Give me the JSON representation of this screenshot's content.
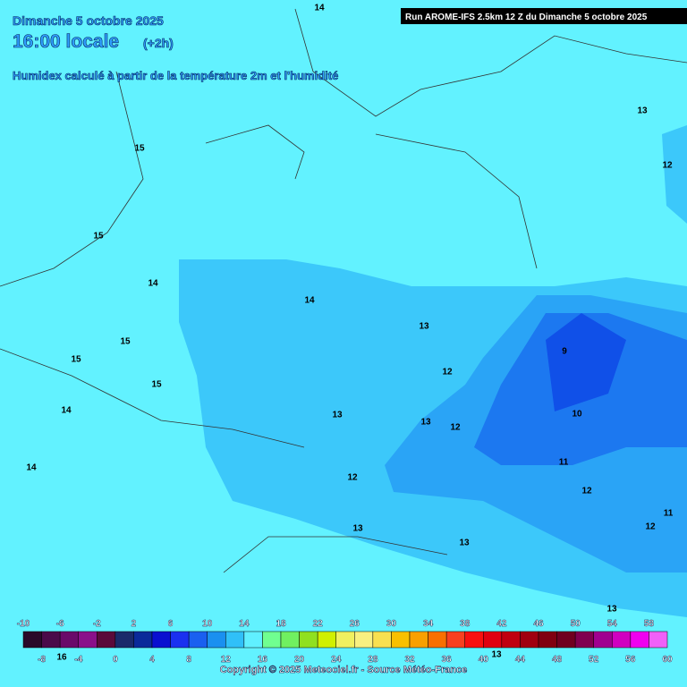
{
  "header": {
    "date": "Dimanche 5 octobre 2025",
    "time": "16:00 locale",
    "offset": "(+2h)",
    "description": "Humidex calculé à partir de la température 2m et l'humidité",
    "run": "Run AROME-IFS 2.5km 12 Z du Dimanche 5 octobre 2025"
  },
  "contour_labels": [
    "14",
    "13",
    "12",
    "15",
    "15",
    "14",
    "14",
    "13",
    "15",
    "15",
    "9",
    "15",
    "12",
    "14",
    "13",
    "13",
    "12",
    "10",
    "14",
    "11",
    "12",
    "12",
    "11",
    "12",
    "13",
    "13",
    "13",
    "13",
    "16"
  ],
  "legend": {
    "top_labels": [
      "-10",
      "-6",
      "-2",
      "2",
      "6",
      "10",
      "14",
      "18",
      "22",
      "26",
      "30",
      "34",
      "38",
      "42",
      "46",
      "50",
      "54",
      "58"
    ],
    "bottom_labels": [
      "-8",
      "-4",
      "0",
      "4",
      "8",
      "12",
      "16",
      "20",
      "24",
      "28",
      "32",
      "36",
      "40",
      "44",
      "48",
      "52",
      "56",
      "60"
    ],
    "colors": [
      "#2a0a2a",
      "#4a0a4a",
      "#6a0a6a",
      "#8a108a",
      "#5a0a3a",
      "#1a2a6a",
      "#0a2a9a",
      "#0a10d0",
      "#1a30f0",
      "#1a60f0",
      "#1a90f0",
      "#30c0f8",
      "#60f0ff",
      "#70ff90",
      "#70f060",
      "#90e020",
      "#d0f000",
      "#f0f060",
      "#f8f080",
      "#f8e050",
      "#f8c000",
      "#f8a000",
      "#f87000",
      "#f84020",
      "#f81010",
      "#e00010",
      "#c00010",
      "#a00010",
      "#800010",
      "#700020",
      "#800050",
      "#a00090",
      "#d000c0",
      "#f000f0",
      "#f060f8"
    ]
  },
  "copyright": "Copyright © 2025 Meteociel.fr - Source Météo-France"
}
